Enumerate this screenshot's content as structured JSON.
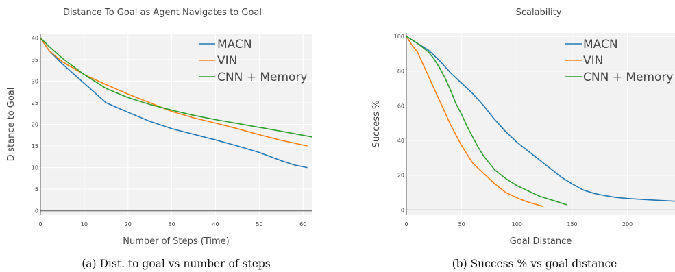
{
  "chart_data": [
    {
      "type": "line",
      "title": "Distance To Goal as Agent Navigates to Goal",
      "xlabel": "Number of Steps (Time)",
      "ylabel": "Distance to Goal",
      "xlim": [
        0,
        62
      ],
      "ylim": [
        -1,
        41
      ],
      "xticks": [
        "0",
        "10",
        "20",
        "30",
        "40",
        "50",
        "60"
      ],
      "xtick_values": [
        0,
        10,
        20,
        30,
        40,
        50,
        60
      ],
      "yticks": [
        "0",
        "5",
        "10",
        "15",
        "20",
        "25",
        "30",
        "35",
        "40"
      ],
      "ytick_values": [
        0,
        5,
        10,
        15,
        20,
        25,
        30,
        35,
        40
      ],
      "grid": true,
      "legend_position": "top-right",
      "caption": "(a) Dist. to goal vs number of steps",
      "series": [
        {
          "name": "MACN",
          "color": "#1f77b4",
          "x": [
            0,
            2,
            5,
            10,
            15,
            20,
            25,
            30,
            35,
            40,
            45,
            50,
            55,
            58,
            61
          ],
          "y": [
            40,
            37,
            34,
            29.5,
            25,
            22.8,
            20.7,
            19,
            17.7,
            16.4,
            15,
            13.5,
            11.6,
            10.6,
            10
          ]
        },
        {
          "name": "VIN",
          "color": "#ff7f0e",
          "x": [
            0,
            2,
            5,
            10,
            15,
            20,
            25,
            30,
            35,
            40,
            45,
            50,
            55,
            61
          ],
          "y": [
            40,
            37,
            34.5,
            31.5,
            29.2,
            27,
            25,
            23,
            21.5,
            20.3,
            19,
            17.6,
            16.3,
            15
          ]
        },
        {
          "name": "CNN + Memory",
          "color": "#2ca02c",
          "x": [
            0,
            2,
            5,
            10,
            15,
            20,
            25,
            30,
            35,
            40,
            45,
            50,
            55,
            62
          ],
          "y": [
            40,
            38,
            35.3,
            31.5,
            28.3,
            26.2,
            24.6,
            23.3,
            22.1,
            21.1,
            20.2,
            19.3,
            18.4,
            17.1
          ]
        }
      ]
    },
    {
      "type": "line",
      "title": "Scalability",
      "xlabel": "Goal Distance",
      "ylabel": "Success %",
      "xlim": [
        0,
        243
      ],
      "ylim": [
        -3,
        102
      ],
      "xticks": [
        "0",
        "50",
        "100",
        "150",
        "200"
      ],
      "xtick_values": [
        0,
        50,
        100,
        150,
        200
      ],
      "yticks": [
        "0",
        "20",
        "40",
        "60",
        "80",
        "100"
      ],
      "ytick_values": [
        0,
        20,
        40,
        60,
        80,
        100
      ],
      "grid": true,
      "legend_position": "top-right",
      "caption": "(b) Success % vs goal distance",
      "series": [
        {
          "name": "MACN",
          "color": "#1f77b4",
          "x": [
            0,
            10,
            20,
            30,
            40,
            50,
            60,
            70,
            80,
            90,
            100,
            110,
            120,
            130,
            140,
            150,
            160,
            170,
            180,
            190,
            200,
            220,
            243
          ],
          "y": [
            100,
            96,
            92,
            86,
            79,
            73,
            67,
            60,
            52,
            45,
            39,
            34,
            29,
            24,
            19,
            15,
            11.5,
            9.5,
            8.2,
            7.2,
            6.6,
            5.8,
            5
          ]
        },
        {
          "name": "VIN",
          "color": "#ff7f0e",
          "x": [
            0,
            5,
            10,
            15,
            20,
            25,
            30,
            35,
            40,
            45,
            50,
            55,
            60,
            70,
            80,
            90,
            100,
            110,
            124
          ],
          "y": [
            100,
            95,
            91,
            84,
            77,
            70,
            63,
            56,
            49,
            43,
            37,
            32,
            27,
            21,
            15,
            10,
            7,
            4.5,
            2
          ]
        },
        {
          "name": "CNN + Memory",
          "color": "#2ca02c",
          "x": [
            0,
            10,
            20,
            25,
            30,
            35,
            40,
            45,
            50,
            55,
            60,
            65,
            70,
            75,
            80,
            90,
            100,
            110,
            120,
            130,
            145
          ],
          "y": [
            100,
            96,
            91,
            87,
            82,
            76,
            69,
            61,
            55,
            48,
            42,
            36,
            31,
            27,
            23,
            18,
            14,
            11,
            8,
            6,
            3
          ]
        }
      ]
    }
  ]
}
